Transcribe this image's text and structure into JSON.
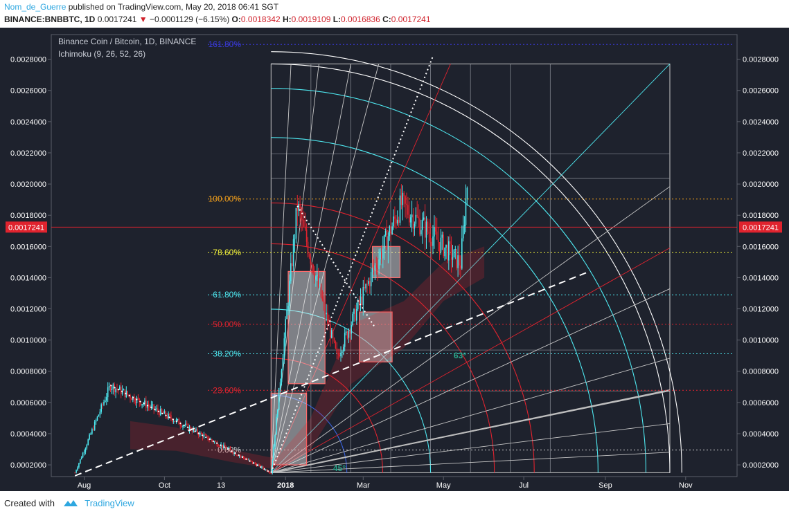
{
  "header": {
    "author": "Nom_de_Guerre",
    "published_text": "published on TradingView.com, May 20, 2018 06:41 SGT",
    "symbol": "BINANCE:BNBBTC, 1D",
    "last": "0.0017241",
    "change": "−0.0001129 (−6.15%)",
    "o_label": "O:",
    "o_value": "0.0018342",
    "h_label": "H:",
    "h_value": "0.0019109",
    "l_label": "L:",
    "l_value": "0.0016836",
    "c_label": "C:",
    "c_value": "0.0017241"
  },
  "legend": {
    "title": "Binance Coin / Bitcoin, 1D, BINANCE",
    "indicator": "Ichimoku (9, 26, 52, 26)"
  },
  "footer": {
    "created_with": "Created with",
    "brand": "TradingView"
  },
  "colors": {
    "background": "#1e222d",
    "candle_up": "#4ee8f0",
    "candle_down": "#e0232e",
    "fib_0": "#d0d0d0",
    "fib_236": "#e0232e",
    "fib_382": "#4ee8f0",
    "fib_50": "#e0232e",
    "fib_618": "#4ee8f0",
    "fib_786": "#f3f33a",
    "fib_100": "#f7a21b",
    "fib_1618": "#3a3ae0",
    "price_tag": "#e0232e"
  },
  "chart_data": {
    "type": "candlestick",
    "title": "Binance Coin / Bitcoin, 1D, BINANCE",
    "indicator": "Ichimoku (9, 26, 52, 26)",
    "x_ticks": [
      "Aug",
      "Oct",
      "13",
      "2018",
      "Mar",
      "May",
      "Jul",
      "Sep",
      "Nov"
    ],
    "x_ticks_bold": [
      "2018"
    ],
    "y_ticks": [
      "0.0002000",
      "0.0004000",
      "0.0006000",
      "0.0008000",
      "0.0010000",
      "0.0012000",
      "0.0014000",
      "0.0016000",
      "0.0018000",
      "0.0020000",
      "0.0022000",
      "0.0024000",
      "0.0026000",
      "0.0028000"
    ],
    "ylim": [
      0.000125,
      0.002958
    ],
    "last_price_label": "0.0017241",
    "last_price": 0.0017241,
    "fib_levels": [
      {
        "label": "0.00%",
        "value": 0.000295,
        "color": "#d0d0d0"
      },
      {
        "label": "23.60%",
        "value": 0.000678,
        "color": "#e0232e"
      },
      {
        "label": "38.20%",
        "value": 0.000912,
        "color": "#4ee8f0"
      },
      {
        "label": "50.00%",
        "value": 0.001101,
        "color": "#e0232e"
      },
      {
        "label": "61.80%",
        "value": 0.00129,
        "color": "#4ee8f0"
      },
      {
        "label": "78.60%",
        "value": 0.001561,
        "color": "#f3f33a"
      },
      {
        "label": "100.00%",
        "value": 0.001904,
        "color": "#f7a21b"
      },
      {
        "label": "161.80%",
        "value": 0.002895,
        "color": "#3a3ae0"
      }
    ],
    "annotations": [
      "45°",
      "63°"
    ],
    "key_points": [
      {
        "date": "2017-07-25",
        "value": 0.00015
      },
      {
        "date": "2017-08-21",
        "value": 0.00071
      },
      {
        "date": "2017-12-21",
        "value": 0.00015
      },
      {
        "date": "2018-01-10",
        "value": 0.00186
      },
      {
        "date": "2018-02-09",
        "value": 0.00089
      },
      {
        "date": "2018-03-30",
        "value": 0.00187
      },
      {
        "date": "2018-05-14",
        "value": 0.00149
      },
      {
        "date": "2018-05-19",
        "value": 0.002
      },
      {
        "date": "2018-05-20",
        "value": 0.0017241
      }
    ]
  }
}
